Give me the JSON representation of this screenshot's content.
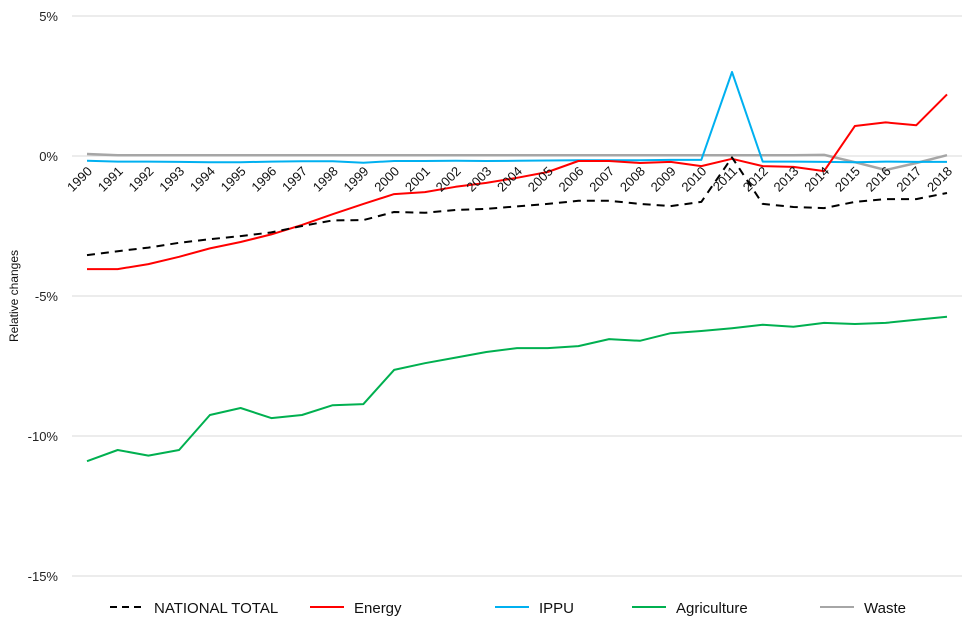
{
  "chart_data": {
    "type": "line",
    "title": "",
    "xlabel": "",
    "ylabel": "Relative changes",
    "ylim": [
      -15,
      5
    ],
    "yticks": [
      5,
      0,
      -5,
      -10,
      -15
    ],
    "ytick_labels": [
      "5%",
      "0%",
      "-5%",
      "-10%",
      "-15%"
    ],
    "grid": true,
    "legend_position": "bottom",
    "x": [
      "1990",
      "1991",
      "1992",
      "1993",
      "1994",
      "1995",
      "1996",
      "1997",
      "1998",
      "1999",
      "2000",
      "2001",
      "2002",
      "2003",
      "2004",
      "2005",
      "2006",
      "2007",
      "2008",
      "2009",
      "2010",
      "2011",
      "2012",
      "2013",
      "2014",
      "2015",
      "2016",
      "2017",
      "2018"
    ],
    "series": [
      {
        "name": "NATIONAL TOTAL",
        "color": "#000000",
        "dashed": true,
        "values": [
          -3.54,
          -3.4,
          -3.27,
          -3.1,
          -2.97,
          -2.86,
          -2.73,
          -2.5,
          -2.3,
          -2.29,
          -2.0,
          -2.03,
          -1.93,
          -1.89,
          -1.8,
          -1.71,
          -1.6,
          -1.6,
          -1.71,
          -1.79,
          -1.64,
          -0.05,
          -1.71,
          -1.82,
          -1.86,
          -1.64,
          -1.54,
          -1.54,
          -1.32
        ]
      },
      {
        "name": "Energy",
        "color": "#ff0000",
        "dashed": false,
        "values": [
          -4.04,
          -4.04,
          -3.86,
          -3.6,
          -3.3,
          -3.07,
          -2.8,
          -2.46,
          -2.08,
          -1.71,
          -1.36,
          -1.29,
          -1.1,
          -0.96,
          -0.78,
          -0.57,
          -0.18,
          -0.18,
          -0.25,
          -0.21,
          -0.36,
          -0.1,
          -0.36,
          -0.39,
          -0.54,
          1.07,
          1.2,
          1.1,
          2.2
        ]
      },
      {
        "name": "IPPU",
        "color": "#00b0f0",
        "dashed": false,
        "values": [
          -0.17,
          -0.2,
          -0.2,
          -0.21,
          -0.22,
          -0.22,
          -0.2,
          -0.19,
          -0.19,
          -0.24,
          -0.18,
          -0.18,
          -0.17,
          -0.18,
          -0.17,
          -0.16,
          -0.15,
          -0.15,
          -0.15,
          -0.14,
          -0.14,
          3.0,
          -0.2,
          -0.2,
          -0.21,
          -0.22,
          -0.2,
          -0.21,
          -0.21
        ]
      },
      {
        "name": "Agriculture",
        "color": "#00b050",
        "dashed": false,
        "values": [
          -10.9,
          -10.5,
          -10.7,
          -10.5,
          -9.25,
          -9.0,
          -9.36,
          -9.25,
          -8.9,
          -8.86,
          -7.64,
          -7.4,
          -7.2,
          -7.0,
          -6.86,
          -6.86,
          -6.79,
          -6.54,
          -6.6,
          -6.33,
          -6.25,
          -6.15,
          -6.03,
          -6.1,
          -5.96,
          -6.0,
          -5.96,
          -5.85,
          -5.74
        ]
      },
      {
        "name": "Waste",
        "color": "#a6a6a6",
        "dashed": false,
        "values": [
          0.07,
          0.03,
          0.03,
          0.03,
          0.03,
          0.03,
          0.03,
          0.03,
          0.03,
          0.03,
          0.03,
          0.03,
          0.03,
          0.03,
          0.03,
          0.03,
          0.03,
          0.03,
          0.03,
          0.03,
          0.03,
          0.03,
          0.03,
          0.03,
          0.04,
          -0.22,
          -0.5,
          -0.25,
          0.03
        ]
      }
    ]
  }
}
